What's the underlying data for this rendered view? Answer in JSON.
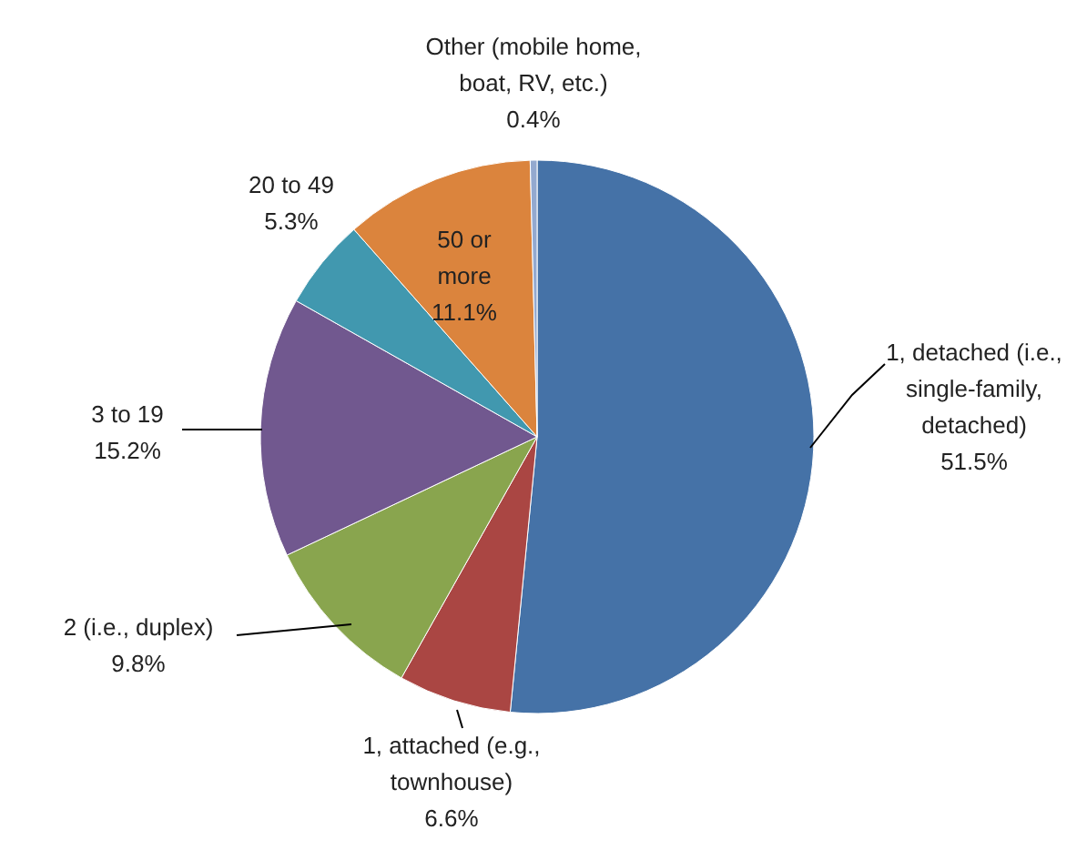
{
  "chart_data": {
    "type": "pie",
    "categories": [
      "1, detached (i.e., single-family, detached)",
      "1, attached (e.g., townhouse)",
      "2 (i.e., duplex)",
      "3 to 19",
      "20 to 49",
      "50 or more",
      "Other (mobile home, boat, RV, etc.)"
    ],
    "values": [
      51.5,
      6.6,
      9.8,
      15.2,
      5.3,
      11.1,
      0.4
    ],
    "value_labels": [
      "51.5%",
      "6.6%",
      "9.8%",
      "15.2%",
      "5.3%",
      "11.1%",
      "0.4%"
    ],
    "colors": [
      "#4572a7",
      "#aa4643",
      "#89a54e",
      "#71588f",
      "#4198af",
      "#db843d",
      "#93a9cf"
    ]
  }
}
